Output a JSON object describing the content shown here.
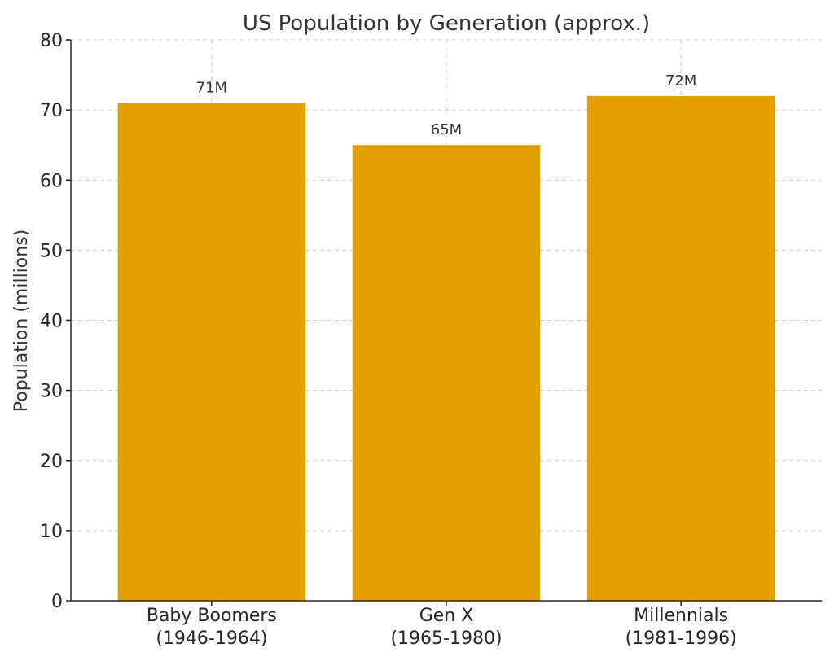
{
  "chart_data": {
    "type": "bar",
    "title": "US Population by Generation (approx.)",
    "xlabel": "",
    "ylabel": "Population (millions)",
    "categories": [
      [
        "Baby Boomers",
        "(1946-1964)"
      ],
      [
        "Gen X",
        "(1965-1980)"
      ],
      [
        "Millennials",
        "(1981-1996)"
      ]
    ],
    "values": [
      71,
      65,
      72
    ],
    "data_labels": [
      "71M",
      "65M",
      "72M"
    ],
    "ylim": [
      0,
      80
    ],
    "yticks": [
      0,
      10,
      20,
      30,
      40,
      50,
      60,
      70,
      80
    ],
    "grid": true,
    "bar_color": "#E69F00"
  }
}
